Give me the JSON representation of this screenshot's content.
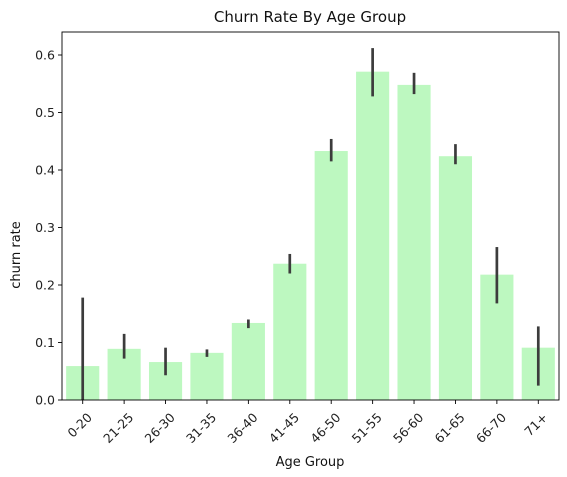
{
  "chart_data": {
    "type": "bar",
    "title": "Churn Rate By Age Group",
    "xlabel": "Age Group",
    "ylabel": "churn rate",
    "categories": [
      "0-20",
      "21-25",
      "26-30",
      "31-35",
      "36-40",
      "41-45",
      "46-50",
      "51-55",
      "56-60",
      "61-65",
      "66-70",
      "71+"
    ],
    "values": [
      0.059,
      0.089,
      0.066,
      0.082,
      0.134,
      0.237,
      0.433,
      0.571,
      0.548,
      0.424,
      0.218,
      0.091
    ],
    "error_low": [
      0.0,
      0.072,
      0.043,
      0.075,
      0.125,
      0.22,
      0.415,
      0.528,
      0.532,
      0.41,
      0.168,
      0.025
    ],
    "error_high": [
      0.178,
      0.115,
      0.091,
      0.088,
      0.14,
      0.254,
      0.454,
      0.612,
      0.569,
      0.445,
      0.266,
      0.128
    ],
    "ylim": [
      0,
      0.64
    ],
    "yticks": [
      "0.0",
      "0.1",
      "0.2",
      "0.3",
      "0.4",
      "0.5",
      "0.6"
    ],
    "ytick_values": [
      0,
      0.1,
      0.2,
      0.3,
      0.4,
      0.5,
      0.6
    ],
    "bar_color": "#bdf8c0",
    "error_color": "#3c3c3c",
    "grid": false,
    "legend": "none"
  }
}
